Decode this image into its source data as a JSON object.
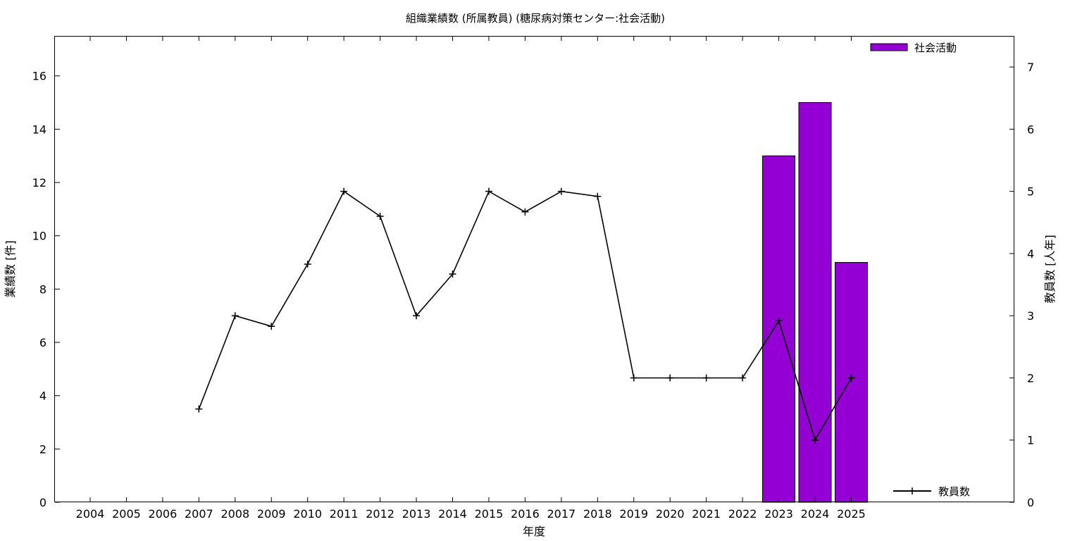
{
  "chart_data": {
    "type": "bar",
    "title": "組織業績数 (所属教員) (糖尿病対策センター:社会活動)",
    "xlabel": "年度",
    "ylabel": "業績数 [件]",
    "y2label": "教員数 [人年]",
    "categories": [
      "2004",
      "2005",
      "2006",
      "2007",
      "2008",
      "2009",
      "2010",
      "2011",
      "2012",
      "2013",
      "2014",
      "2015",
      "2016",
      "2017",
      "2018",
      "2019",
      "2020",
      "2021",
      "2022",
      "2023",
      "2024",
      "2025"
    ],
    "y_ticks": [
      "0",
      "2",
      "4",
      "6",
      "8",
      "10",
      "12",
      "14",
      "16"
    ],
    "y2_ticks": [
      "0",
      "1",
      "2",
      "3",
      "4",
      "5",
      "6",
      "7"
    ],
    "ylim": [
      0,
      17.5
    ],
    "y2lim": [
      0,
      7.5
    ],
    "grid": false,
    "legend_position": "top-right",
    "series": [
      {
        "name": "社会活動",
        "type": "bar",
        "axis": "left",
        "color": "#9400d3",
        "values": [
          null,
          null,
          null,
          null,
          null,
          null,
          null,
          null,
          null,
          null,
          null,
          null,
          null,
          null,
          null,
          null,
          null,
          null,
          null,
          13,
          15,
          9
        ]
      },
      {
        "name": "教員数",
        "type": "line",
        "axis": "right",
        "color": "#000000",
        "values": [
          null,
          null,
          null,
          1.5,
          3.0,
          2.83,
          3.83,
          5.0,
          4.6,
          3.0,
          3.67,
          5.0,
          4.67,
          5.0,
          4.92,
          2.0,
          2.0,
          2.0,
          2.0,
          2.92,
          1.0,
          2.0
        ]
      }
    ]
  }
}
